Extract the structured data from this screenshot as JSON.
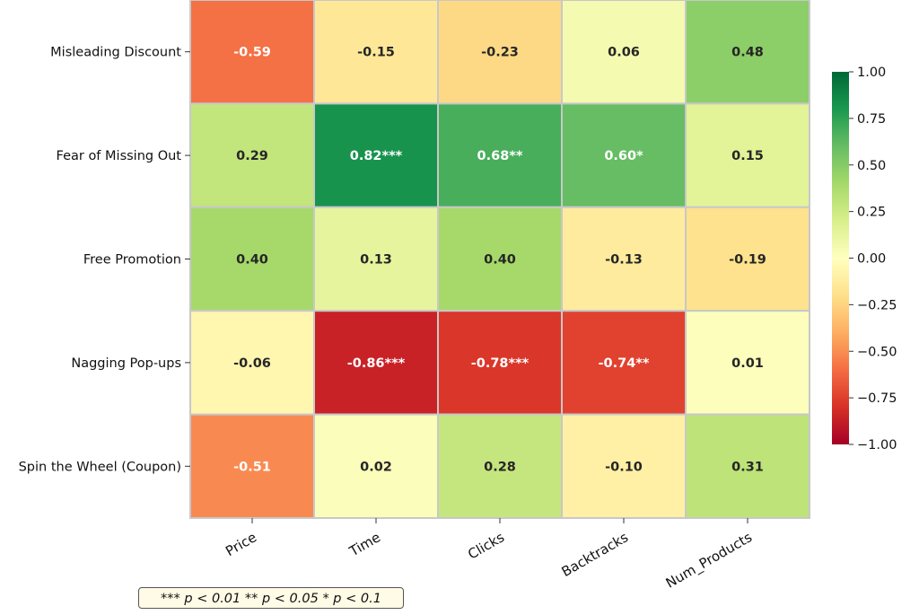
{
  "chart_data": {
    "type": "heatmap",
    "rows": [
      "Misleading Discount",
      "Fear of Missing Out",
      "Free Promotion",
      "Nagging Pop-ups",
      "Spin the Wheel (Coupon)"
    ],
    "columns": [
      "Price",
      "Time",
      "Clicks",
      "Backtracks",
      "Num_Products"
    ],
    "values": [
      [
        -0.59,
        -0.15,
        -0.23,
        0.06,
        0.48
      ],
      [
        0.29,
        0.82,
        0.68,
        0.6,
        0.15
      ],
      [
        0.4,
        0.13,
        0.4,
        -0.13,
        -0.19
      ],
      [
        -0.06,
        -0.86,
        -0.78,
        -0.74,
        0.01
      ],
      [
        -0.51,
        0.02,
        0.28,
        -0.1,
        0.31
      ]
    ],
    "cell_labels": [
      [
        "-0.59",
        "-0.15",
        "-0.23",
        "0.06",
        "0.48"
      ],
      [
        "0.29",
        "0.82***",
        "0.68**",
        "0.60*",
        "0.15"
      ],
      [
        "0.40",
        "0.13",
        "0.40",
        "-0.13",
        "-0.19"
      ],
      [
        "-0.06",
        "-0.86***",
        "-0.78***",
        "-0.74**",
        "0.01"
      ],
      [
        "-0.51",
        "0.02",
        "0.28",
        "-0.10",
        "0.31"
      ]
    ],
    "colorbar": {
      "range": [
        -1.0,
        1.0
      ],
      "ticks": [
        1.0,
        0.75,
        0.5,
        0.25,
        0.0,
        -0.25,
        -0.5,
        -0.75,
        -1.0
      ],
      "tick_labels": [
        "1.00",
        "0.75",
        "0.50",
        "0.25",
        "0.00",
        "−0.25",
        "−0.50",
        "−0.75",
        "−1.00"
      ],
      "colormap": "RdYlGn"
    },
    "significance_note": "*** p < 0.01    ** p < 0.05    * p < 0.1"
  }
}
